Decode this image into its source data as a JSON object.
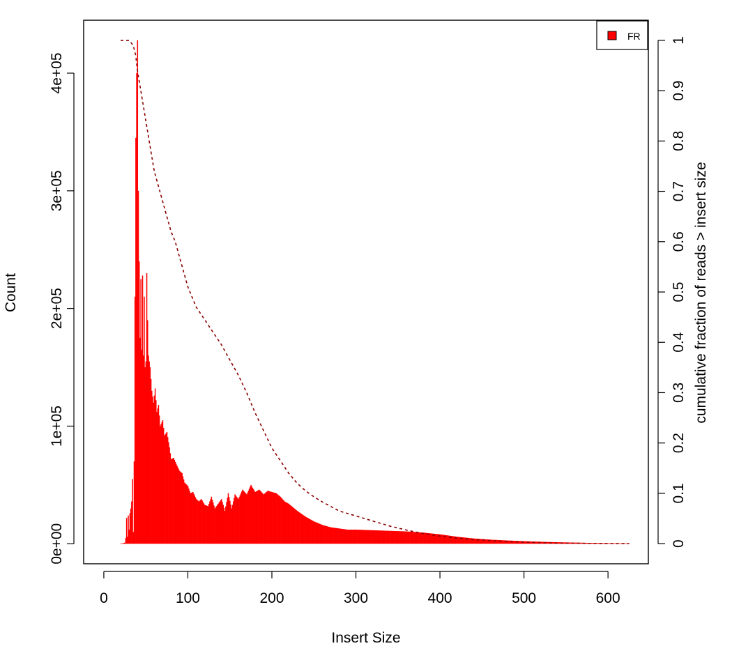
{
  "chart_data": {
    "type": "bar",
    "xlabel": "Insert Size",
    "ylabel": "Count",
    "y2label": "cumulative fraction of reads > insert size",
    "xlim": [
      -24,
      648
    ],
    "ylim": [
      -17000,
      445000
    ],
    "y2lim": [
      -0.04,
      1.04
    ],
    "x_ticks": [
      0,
      100,
      200,
      300,
      400,
      500,
      600
    ],
    "y_ticks": [
      0,
      100000,
      200000,
      300000,
      400000
    ],
    "y_tick_labels": [
      "0e+00",
      "1e+05",
      "2e+05",
      "3e+05",
      "4e+05"
    ],
    "y2_ticks": [
      0,
      0.1,
      0.2,
      0.3,
      0.4,
      0.5,
      0.6,
      0.7,
      0.8,
      0.9,
      1
    ],
    "y2_tick_labels": [
      "0",
      "0.1",
      "0.2",
      "0.3",
      "0.4",
      "0.5",
      "0.6",
      "0.7",
      "0.8",
      "0.9",
      "1"
    ],
    "legend": {
      "position": "top-right",
      "label": "FR"
    },
    "series": [
      {
        "name": "FR",
        "kind": "histogram",
        "color": "#ff0000",
        "x_range": [
          20,
          625
        ],
        "points": [
          [
            20,
            0
          ],
          [
            25,
            1000
          ],
          [
            26,
            5000
          ],
          [
            27,
            22000
          ],
          [
            28,
            6000
          ],
          [
            29,
            24000
          ],
          [
            30,
            12000
          ],
          [
            31,
            26000
          ],
          [
            32,
            30000
          ],
          [
            33,
            36000
          ],
          [
            34,
            55000
          ],
          [
            35,
            10000
          ],
          [
            36,
            70000
          ],
          [
            37,
            210000
          ],
          [
            38,
            345000
          ],
          [
            39,
            400000
          ],
          [
            40,
            428000
          ],
          [
            41,
            300000
          ],
          [
            42,
            240000
          ],
          [
            43,
            175000
          ],
          [
            44,
            225000
          ],
          [
            45,
            165000
          ],
          [
            46,
            228000
          ],
          [
            47,
            160000
          ],
          [
            48,
            210000
          ],
          [
            49,
            150000
          ],
          [
            50,
            155000
          ],
          [
            51,
            230000
          ],
          [
            52,
            190000
          ],
          [
            53,
            160000
          ],
          [
            55,
            150000
          ],
          [
            57,
            130000
          ],
          [
            59,
            120000
          ],
          [
            61,
            132000
          ],
          [
            63,
            112000
          ],
          [
            65,
            118000
          ],
          [
            67,
            100000
          ],
          [
            70,
            105000
          ],
          [
            72,
            92000
          ],
          [
            75,
            95000
          ],
          [
            78,
            82000
          ],
          [
            80,
            72000
          ],
          [
            83,
            73000
          ],
          [
            86,
            68000
          ],
          [
            90,
            62000
          ],
          [
            93,
            60000
          ],
          [
            96,
            52000
          ],
          [
            100,
            49000
          ],
          [
            103,
            43000
          ],
          [
            106,
            44000
          ],
          [
            110,
            38000
          ],
          [
            113,
            36000
          ],
          [
            116,
            38000
          ],
          [
            120,
            33000
          ],
          [
            124,
            32000
          ],
          [
            128,
            40000
          ],
          [
            132,
            30000
          ],
          [
            136,
            34000
          ],
          [
            140,
            38000
          ],
          [
            144,
            28000
          ],
          [
            148,
            43000
          ],
          [
            152,
            30000
          ],
          [
            156,
            42000
          ],
          [
            160,
            38000
          ],
          [
            165,
            46000
          ],
          [
            170,
            42000
          ],
          [
            175,
            50000
          ],
          [
            180,
            44000
          ],
          [
            185,
            46000
          ],
          [
            190,
            42000
          ],
          [
            195,
            45000
          ],
          [
            200,
            44000
          ],
          [
            205,
            43000
          ],
          [
            210,
            40000
          ],
          [
            215,
            36000
          ],
          [
            220,
            34000
          ],
          [
            230,
            28000
          ],
          [
            240,
            23000
          ],
          [
            250,
            19000
          ],
          [
            260,
            16000
          ],
          [
            270,
            14000
          ],
          [
            280,
            13000
          ],
          [
            290,
            12000
          ],
          [
            300,
            12000
          ],
          [
            320,
            11500
          ],
          [
            340,
            11000
          ],
          [
            360,
            10500
          ],
          [
            380,
            9500
          ],
          [
            400,
            8000
          ],
          [
            420,
            6000
          ],
          [
            440,
            4500
          ],
          [
            460,
            3500
          ],
          [
            480,
            2800
          ],
          [
            500,
            2200
          ],
          [
            520,
            1700
          ],
          [
            540,
            1300
          ],
          [
            560,
            1000
          ],
          [
            580,
            700
          ],
          [
            600,
            500
          ],
          [
            625,
            300
          ]
        ]
      },
      {
        "name": "cumulative fraction of reads > insert size",
        "kind": "line",
        "style": "dashed",
        "color": "#8b0000",
        "axis": "right",
        "points": [
          [
            20,
            1.0
          ],
          [
            30,
            1.0
          ],
          [
            35,
            0.99
          ],
          [
            38,
            0.97
          ],
          [
            40,
            0.94
          ],
          [
            44,
            0.9
          ],
          [
            48,
            0.86
          ],
          [
            52,
            0.82
          ],
          [
            56,
            0.78
          ],
          [
            60,
            0.74
          ],
          [
            65,
            0.71
          ],
          [
            70,
            0.68
          ],
          [
            75,
            0.65
          ],
          [
            80,
            0.62
          ],
          [
            85,
            0.6
          ],
          [
            90,
            0.57
          ],
          [
            95,
            0.54
          ],
          [
            100,
            0.51
          ],
          [
            110,
            0.47
          ],
          [
            120,
            0.445
          ],
          [
            130,
            0.42
          ],
          [
            140,
            0.395
          ],
          [
            150,
            0.365
          ],
          [
            160,
            0.335
          ],
          [
            170,
            0.3
          ],
          [
            180,
            0.26
          ],
          [
            190,
            0.225
          ],
          [
            200,
            0.19
          ],
          [
            210,
            0.165
          ],
          [
            220,
            0.14
          ],
          [
            230,
            0.12
          ],
          [
            240,
            0.105
          ],
          [
            250,
            0.093
          ],
          [
            260,
            0.083
          ],
          [
            270,
            0.074
          ],
          [
            280,
            0.065
          ],
          [
            300,
            0.055
          ],
          [
            320,
            0.045
          ],
          [
            340,
            0.035
          ],
          [
            360,
            0.027
          ],
          [
            380,
            0.02
          ],
          [
            400,
            0.015
          ],
          [
            420,
            0.011
          ],
          [
            440,
            0.008
          ],
          [
            460,
            0.006
          ],
          [
            480,
            0.004
          ],
          [
            500,
            0.003
          ],
          [
            520,
            0.002
          ],
          [
            540,
            0.001
          ],
          [
            560,
            0.0008
          ],
          [
            580,
            0.0004
          ],
          [
            600,
            0.0002
          ],
          [
            625,
            0
          ]
        ]
      }
    ]
  }
}
